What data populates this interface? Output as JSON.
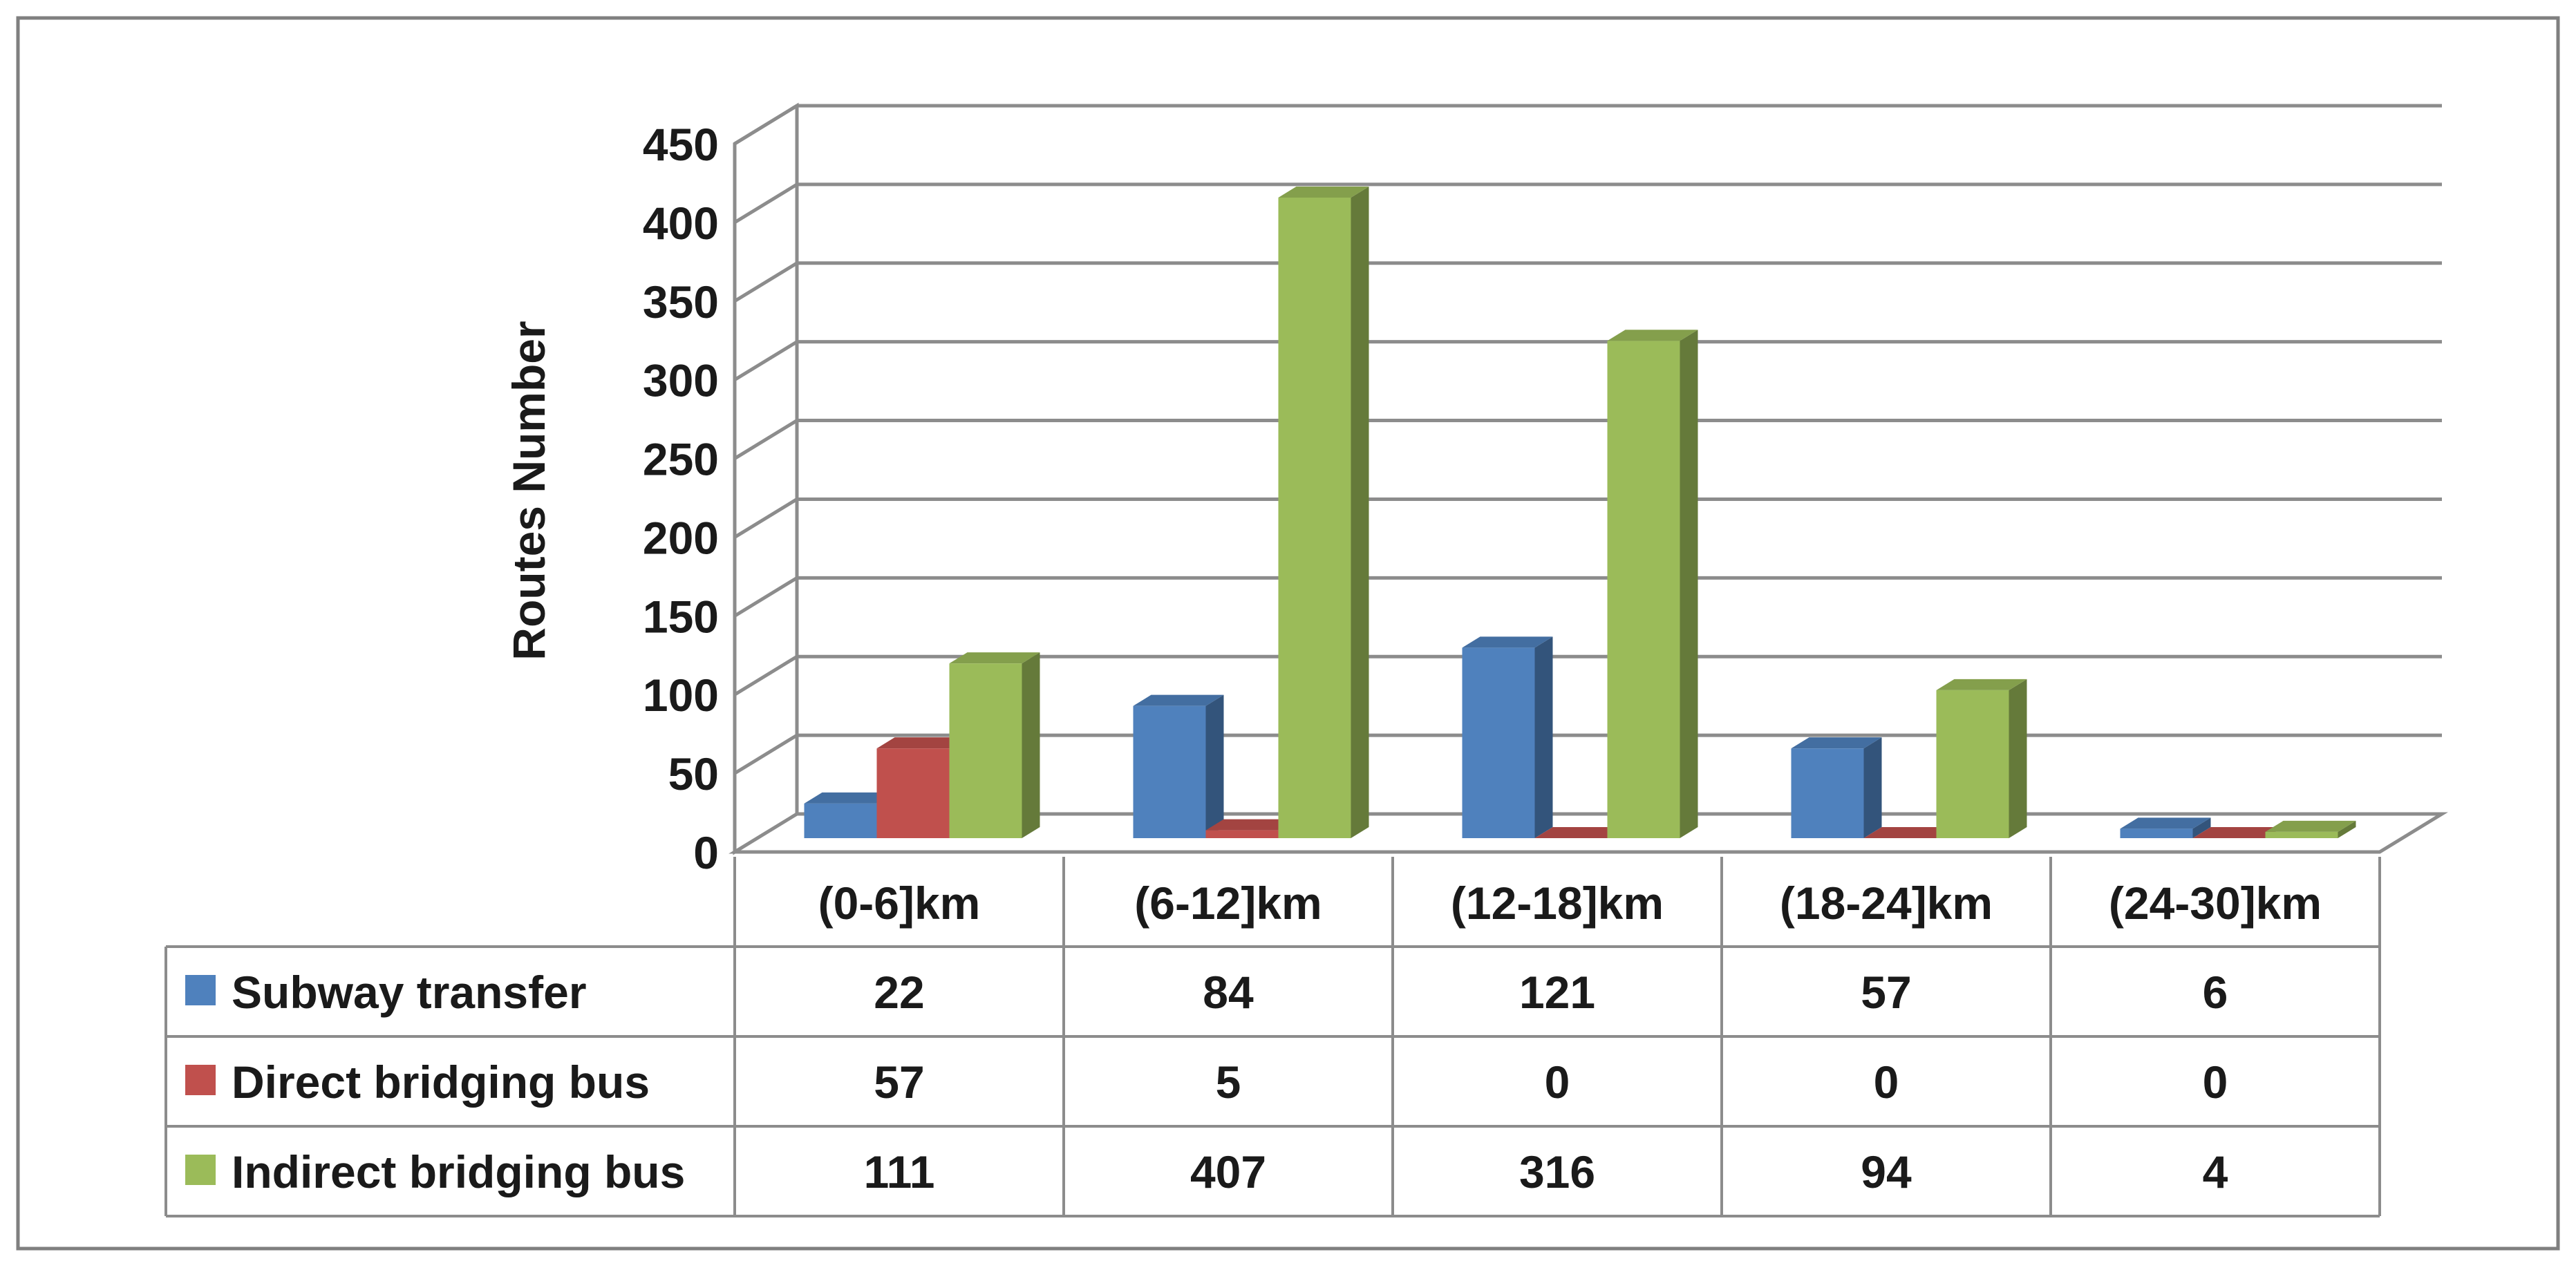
{
  "chart_data": {
    "type": "bar",
    "title": "",
    "xlabel": "",
    "ylabel": "Routes Number",
    "ylim": [
      0,
      450
    ],
    "yticks": [
      0,
      50,
      100,
      150,
      200,
      250,
      300,
      350,
      400,
      450
    ],
    "categories": [
      "(0-6]km",
      "(6-12]km",
      "(12-18]km",
      "(18-24]km",
      "(24-30]km"
    ],
    "series": [
      {
        "name": "Subway transfer",
        "values": [
          22,
          84,
          121,
          57,
          6
        ],
        "color": "#4f81bd"
      },
      {
        "name": "Direct bridging bus",
        "values": [
          57,
          5,
          0,
          0,
          0
        ],
        "color": "#c0504d"
      },
      {
        "name": "Indirect bridging bus",
        "values": [
          111,
          407,
          316,
          94,
          4
        ],
        "color": "#9bbb59"
      }
    ],
    "grid": true,
    "legend": "data-table"
  }
}
